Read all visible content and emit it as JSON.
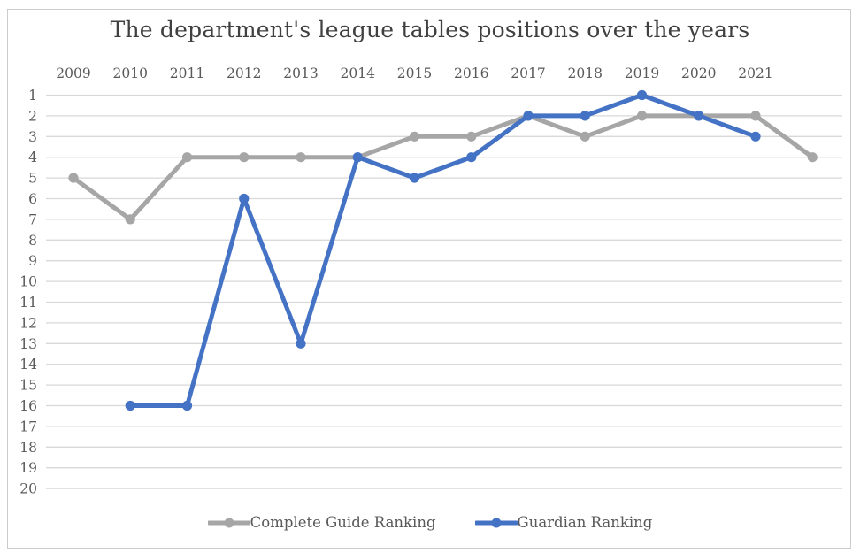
{
  "chart_data": {
    "type": "line",
    "title": "The department's league tables positions over the years",
    "x_labels": [
      "2009",
      "2010",
      "2011",
      "2012",
      "2013",
      "2014",
      "2015",
      "2016",
      "2017",
      "2018",
      "2019",
      "2020",
      "2021",
      ""
    ],
    "y_ticks": [
      1,
      2,
      3,
      4,
      5,
      6,
      7,
      8,
      9,
      10,
      11,
      12,
      13,
      14,
      15,
      16,
      17,
      18,
      19,
      20
    ],
    "y_axis": {
      "min": 1,
      "max": 20,
      "reversed": true,
      "tick_interval": 1
    },
    "grid": true,
    "legend_position": "bottom",
    "series": [
      {
        "name": "Complete Guide Ranking",
        "color": "#a6a6a6",
        "values": [
          5,
          7,
          4,
          4,
          4,
          4,
          3,
          3,
          2,
          3,
          2,
          2,
          2,
          4
        ]
      },
      {
        "name": "Guardian Ranking",
        "color": "#4472c4",
        "values": [
          null,
          16,
          16,
          6,
          13,
          4,
          5,
          4,
          2,
          2,
          1,
          2,
          3,
          null
        ]
      }
    ]
  },
  "colors": {
    "gridline": "#d9d9d9",
    "tick_text": "#595959",
    "title_text": "#404040",
    "frame_border": "#cccccc",
    "background": "#ffffff"
  }
}
